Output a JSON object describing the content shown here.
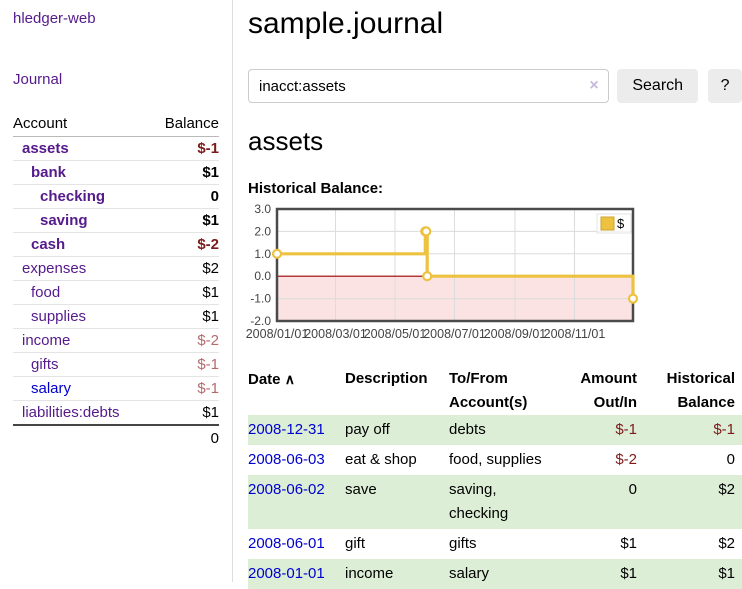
{
  "colors": {
    "link_purple": "#551a8b",
    "link_blue": "#0000cc",
    "negative_strong": "#7d1a1a",
    "negative_soft": "#b36b6b",
    "row_stripe_green": "#ddeed7",
    "button_gray": "#ececec"
  },
  "sidebar": {
    "app_title": "hledger-web",
    "journal_link": "Journal",
    "accounts_table": {
      "headers": {
        "account": "Account",
        "balance": "Balance"
      },
      "rows": [
        {
          "name": "assets",
          "level": 1,
          "balance": "$-1",
          "bold": true,
          "negative": "strong"
        },
        {
          "name": "bank",
          "level": 2,
          "balance": "$1",
          "bold": true
        },
        {
          "name": "checking",
          "level": 3,
          "balance": "0",
          "bold": true
        },
        {
          "name": "saving",
          "level": 3,
          "balance": "$1",
          "bold": true
        },
        {
          "name": "cash",
          "level": 2,
          "balance": "$-2",
          "bold": true,
          "negative": "strong"
        },
        {
          "name": "expenses",
          "level": 1,
          "balance": "$2"
        },
        {
          "name": "food",
          "level": 2,
          "balance": "$1"
        },
        {
          "name": "supplies",
          "level": 2,
          "balance": "$1"
        },
        {
          "name": "income",
          "level": 1,
          "balance": "$-2",
          "negative": "soft"
        },
        {
          "name": "gifts",
          "level": 2,
          "balance": "$-1",
          "negative": "soft"
        },
        {
          "name": "salary",
          "level": 2,
          "balance": "$-1",
          "negative": "soft",
          "link_color": "#0000cc"
        },
        {
          "name": "liabilities:debts",
          "level": 1,
          "balance": "$1"
        }
      ],
      "total": "0"
    }
  },
  "header": {
    "title": "sample.journal"
  },
  "search": {
    "value": "inacct:assets",
    "clear_icon": "×",
    "button_label": "Search",
    "help_label": "?"
  },
  "account_page": {
    "heading": "assets",
    "chart_label": "Historical Balance:"
  },
  "chart_data": {
    "type": "line",
    "step": true,
    "series": [
      {
        "name": "$",
        "color": "#edc240",
        "points": [
          [
            "2008-01-01",
            1
          ],
          [
            "2008-06-01",
            2
          ],
          [
            "2008-06-02",
            2
          ],
          [
            "2008-06-03",
            0
          ],
          [
            "2008-12-31",
            -1
          ]
        ]
      }
    ],
    "x_ticks": [
      "2008/01/01",
      "2008/03/01",
      "2008/05/01",
      "2008/07/01",
      "2008/09/01",
      "2008/11/01"
    ],
    "y_ticks": [
      3.0,
      2.0,
      1.0,
      0.0,
      -1.0,
      -2.0
    ],
    "ylim": [
      -2,
      3
    ],
    "x_epoch": "2008-01-01",
    "x_max_days": 365,
    "grid": true,
    "legend_position": "top-right",
    "plot_border_color": "#4a4a4a",
    "grid_color": "#dcdcdc",
    "zero_line_color": "#990000",
    "negative_region_color": "#fbe3e3",
    "tick_label_color": "#444444"
  },
  "transactions": {
    "headers": {
      "date": "Date",
      "description": "Description",
      "accounts": "To/From Account(s)",
      "amount": "Amount Out/In",
      "balance": "Historical Balance"
    },
    "sort_icon": "∧",
    "rows": [
      {
        "date": "2008-12-31",
        "description": "pay off",
        "accounts": "debts",
        "amount": "$-1",
        "balance": "$-1",
        "amount_negative": true,
        "balance_negative": true
      },
      {
        "date": "2008-06-03",
        "description": "eat & shop",
        "accounts": "food, supplies",
        "amount": "$-2",
        "balance": "0",
        "amount_negative": true
      },
      {
        "date": "2008-06-02",
        "description": "save",
        "accounts": "saving, checking",
        "amount": "0",
        "balance": "$2"
      },
      {
        "date": "2008-06-01",
        "description": "gift",
        "accounts": "gifts",
        "amount": "$1",
        "balance": "$2"
      },
      {
        "date": "2008-01-01",
        "description": "income",
        "accounts": "salary",
        "amount": "$1",
        "balance": "$1"
      }
    ]
  }
}
